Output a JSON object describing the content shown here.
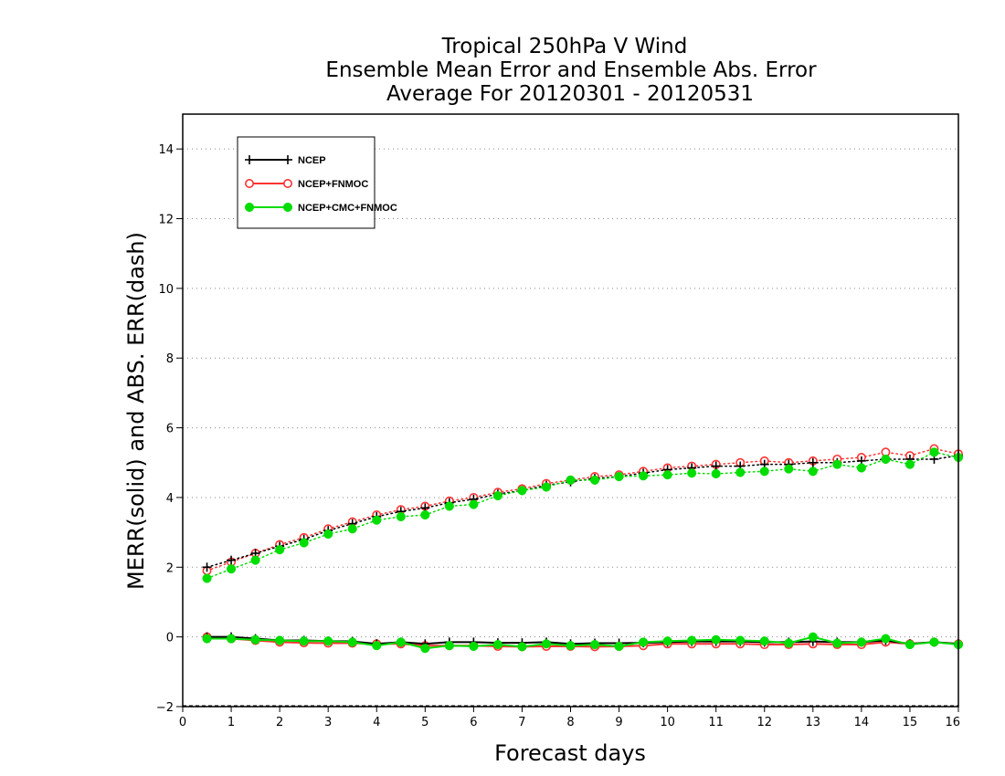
{
  "chart_data": {
    "type": "line",
    "title": [
      "Tropical 250hPa V Wind",
      "Ensemble Mean Error and Ensemble Abs. Error",
      "Average For 20120301 - 20120531"
    ],
    "xlabel": "Forecast days",
    "ylabel": "MERR(solid) and ABS. ERR(dash)",
    "xlim": [
      0,
      16
    ],
    "ylim": [
      -2,
      15
    ],
    "xticks": [
      0,
      1,
      2,
      3,
      4,
      5,
      6,
      7,
      8,
      9,
      10,
      11,
      12,
      13,
      14,
      15,
      16
    ],
    "yticks": [
      -2,
      0,
      2,
      4,
      6,
      8,
      10,
      12,
      14
    ],
    "grid": true,
    "legend_position": "top-left",
    "x": [
      0.5,
      1.0,
      1.5,
      2.0,
      2.5,
      3.0,
      3.5,
      4.0,
      4.5,
      5.0,
      5.5,
      6.0,
      6.5,
      7.0,
      7.5,
      8.0,
      8.5,
      9.0,
      9.5,
      10.0,
      10.5,
      11.0,
      11.5,
      12.0,
      12.5,
      13.0,
      13.5,
      14.0,
      14.5,
      15.0,
      15.5,
      16.0
    ],
    "series": [
      {
        "name": "NCEP",
        "color": "#000000",
        "marker": "plus",
        "mean_error": [
          0.0,
          0.0,
          -0.05,
          -0.1,
          -0.1,
          -0.12,
          -0.13,
          -0.2,
          -0.15,
          -0.2,
          -0.15,
          -0.15,
          -0.17,
          -0.17,
          -0.15,
          -0.2,
          -0.18,
          -0.18,
          -0.17,
          -0.15,
          -0.13,
          -0.13,
          -0.13,
          -0.15,
          -0.15,
          -0.13,
          -0.15,
          -0.15,
          -0.1,
          -0.2,
          -0.15,
          -0.2
        ],
        "abs_error": [
          2.0,
          2.2,
          2.4,
          2.6,
          2.8,
          3.05,
          3.25,
          3.45,
          3.6,
          3.7,
          3.85,
          3.95,
          4.1,
          4.2,
          4.35,
          4.45,
          4.55,
          4.6,
          4.7,
          4.8,
          4.85,
          4.9,
          4.9,
          4.95,
          4.95,
          5.0,
          5.0,
          5.05,
          5.1,
          5.1,
          5.1,
          5.2
        ]
      },
      {
        "name": "NCEP+FNMOC",
        "color": "#ff3333",
        "marker": "open-circle",
        "mean_error": [
          0.0,
          -0.05,
          -0.1,
          -0.15,
          -0.17,
          -0.18,
          -0.18,
          -0.2,
          -0.2,
          -0.25,
          -0.25,
          -0.25,
          -0.27,
          -0.28,
          -0.27,
          -0.27,
          -0.28,
          -0.27,
          -0.25,
          -0.2,
          -0.2,
          -0.2,
          -0.2,
          -0.22,
          -0.22,
          -0.2,
          -0.22,
          -0.22,
          -0.15,
          -0.2,
          -0.15,
          -0.2
        ],
        "abs_error": [
          1.9,
          2.15,
          2.4,
          2.65,
          2.85,
          3.1,
          3.3,
          3.5,
          3.65,
          3.75,
          3.9,
          4.0,
          4.15,
          4.25,
          4.4,
          4.5,
          4.6,
          4.65,
          4.75,
          4.85,
          4.9,
          4.95,
          5.0,
          5.05,
          5.0,
          5.05,
          5.1,
          5.15,
          5.3,
          5.2,
          5.4,
          5.25
        ]
      },
      {
        "name": "NCEP+CMC+FNMOC",
        "color": "#00dd00",
        "marker": "filled-circle",
        "mean_error": [
          -0.05,
          -0.05,
          -0.08,
          -0.1,
          -0.12,
          -0.12,
          -0.15,
          -0.25,
          -0.15,
          -0.33,
          -0.25,
          -0.27,
          -0.22,
          -0.28,
          -0.2,
          -0.25,
          -0.22,
          -0.27,
          -0.15,
          -0.12,
          -0.1,
          -0.08,
          -0.1,
          -0.12,
          -0.18,
          0.0,
          -0.18,
          -0.15,
          -0.05,
          -0.22,
          -0.15,
          -0.22
        ],
        "abs_error": [
          1.68,
          1.95,
          2.2,
          2.5,
          2.7,
          2.95,
          3.1,
          3.35,
          3.45,
          3.5,
          3.75,
          3.8,
          4.05,
          4.2,
          4.3,
          4.5,
          4.5,
          4.6,
          4.62,
          4.65,
          4.7,
          4.68,
          4.72,
          4.75,
          4.82,
          4.75,
          4.95,
          4.85,
          5.1,
          4.95,
          5.3,
          5.15
        ]
      }
    ]
  }
}
